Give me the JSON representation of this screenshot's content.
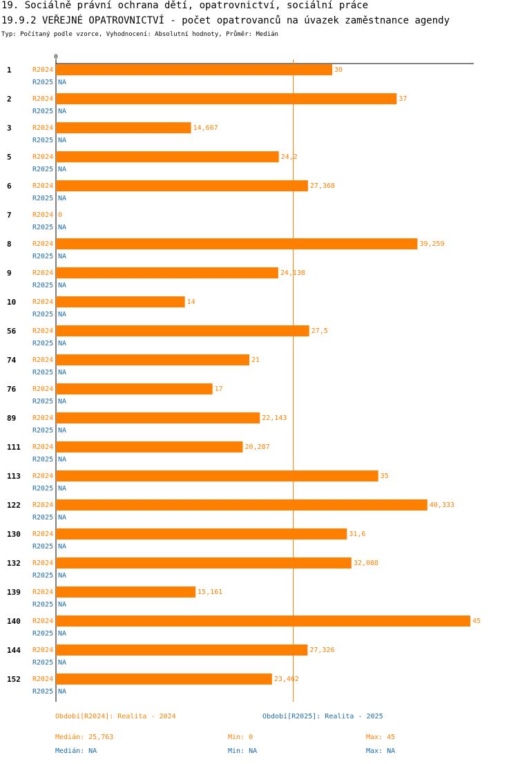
{
  "header": {
    "title1": "19. Sociálně právní ochrana dětí, opatrovnictví, sociální práce",
    "title2": "19.9.2 VEŘEJNÉ OPATROVNICTVÍ - počet opatrovanců na úvazek zaměstnance agendy",
    "subtitle": "Typ: Počítaný podle vzorce, Vyhodnocení: Absolutní hodnoty, Průměr: Medián"
  },
  "colors": {
    "r2024": "#ff8000",
    "r2025": "#1a6aa8",
    "axis": "#000000",
    "median_line": "#ff8000"
  },
  "chart_data": {
    "type": "bar",
    "orientation": "horizontal",
    "axis_zero_label": "0",
    "xlim": [
      0,
      45
    ],
    "median_line_value": 25.763,
    "categories": [
      "1",
      "2",
      "3",
      "5",
      "6",
      "7",
      "8",
      "9",
      "10",
      "56",
      "74",
      "76",
      "89",
      "111",
      "113",
      "122",
      "130",
      "132",
      "139",
      "140",
      "144",
      "152"
    ],
    "series": [
      {
        "name": "R2024",
        "values": [
          30,
          37,
          14.667,
          24.2,
          27.368,
          0,
          39.259,
          24.138,
          14,
          27.5,
          21,
          17,
          22.143,
          20.287,
          35,
          40.333,
          31.6,
          32.088,
          15.161,
          45,
          27.326,
          23.462
        ],
        "labels": [
          "30",
          "37",
          "14,667",
          "24,2",
          "27,368",
          "0",
          "39,259",
          "24,138",
          "14",
          "27,5",
          "21",
          "17",
          "22,143",
          "20,287",
          "35",
          "40,333",
          "31,6",
          "32,088",
          "15,161",
          "45",
          "27,326",
          "23,462"
        ]
      },
      {
        "name": "R2025",
        "values": [
          null,
          null,
          null,
          null,
          null,
          null,
          null,
          null,
          null,
          null,
          null,
          null,
          null,
          null,
          null,
          null,
          null,
          null,
          null,
          null,
          null,
          null
        ],
        "labels": [
          "NA",
          "NA",
          "NA",
          "NA",
          "NA",
          "NA",
          "NA",
          "NA",
          "NA",
          "NA",
          "NA",
          "NA",
          "NA",
          "NA",
          "NA",
          "NA",
          "NA",
          "NA",
          "NA",
          "NA",
          "NA",
          "NA"
        ]
      }
    ]
  },
  "legend": {
    "period2024": "Období[R2024]: Realita - 2024",
    "period2025": "Období[R2025]: Realita - 2025",
    "median2024": "Medián: 25,763",
    "min2024": "Min: 0",
    "max2024": "Max: 45",
    "median2025": "Medián: NA",
    "min2025": "Min: NA",
    "max2025": "Max: NA"
  }
}
